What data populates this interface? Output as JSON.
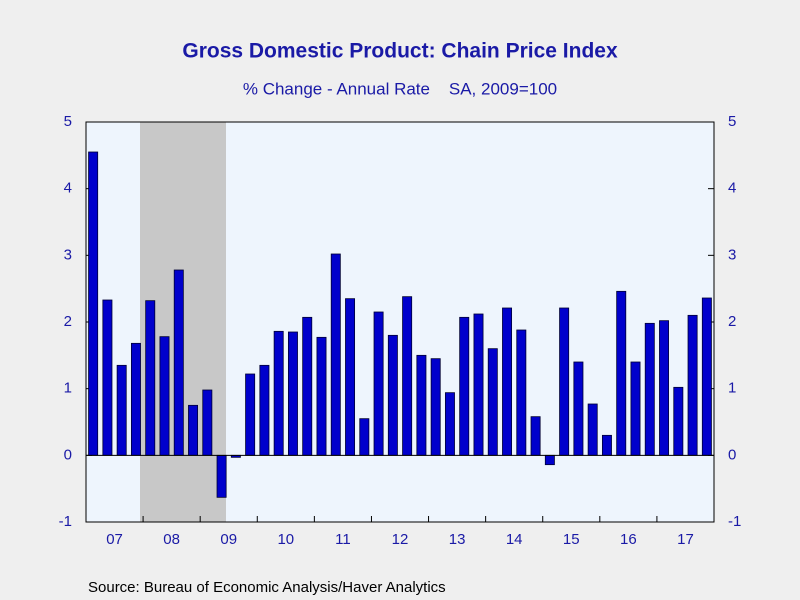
{
  "chart_data": {
    "type": "bar",
    "title": "Gross Domestic Product: Chain Price Index",
    "subtitle": "% Change - Annual Rate    SA, 2009=100",
    "source": "Source:  Bureau of Economic Analysis/Haver Analytics",
    "categories": [
      "07",
      null,
      null,
      null,
      "08",
      null,
      null,
      null,
      "09",
      null,
      null,
      null,
      "10",
      null,
      null,
      null,
      "11",
      null,
      null,
      null,
      "12",
      null,
      null,
      null,
      "13",
      null,
      null,
      null,
      "14",
      null,
      null,
      null,
      "15",
      null,
      null,
      null,
      "16",
      null,
      null,
      null,
      "17",
      null,
      null,
      null
    ],
    "values": [
      4.55,
      2.33,
      1.35,
      1.68,
      2.32,
      1.78,
      2.78,
      0.75,
      0.98,
      -0.63,
      -0.03,
      1.22,
      1.35,
      1.86,
      1.85,
      2.07,
      1.77,
      3.02,
      2.35,
      0.55,
      2.15,
      1.8,
      2.38,
      1.5,
      1.45,
      0.94,
      2.07,
      2.12,
      1.6,
      2.21,
      1.88,
      0.58,
      -0.14,
      2.21,
      1.4,
      0.77,
      0.3,
      2.46,
      1.4,
      1.98,
      2.02,
      1.02,
      2.1,
      2.36
    ],
    "color": "#0000cc",
    "ylim": [
      -1,
      5
    ],
    "yticks": [
      -1,
      0,
      1,
      2,
      3,
      4,
      5
    ]
  }
}
